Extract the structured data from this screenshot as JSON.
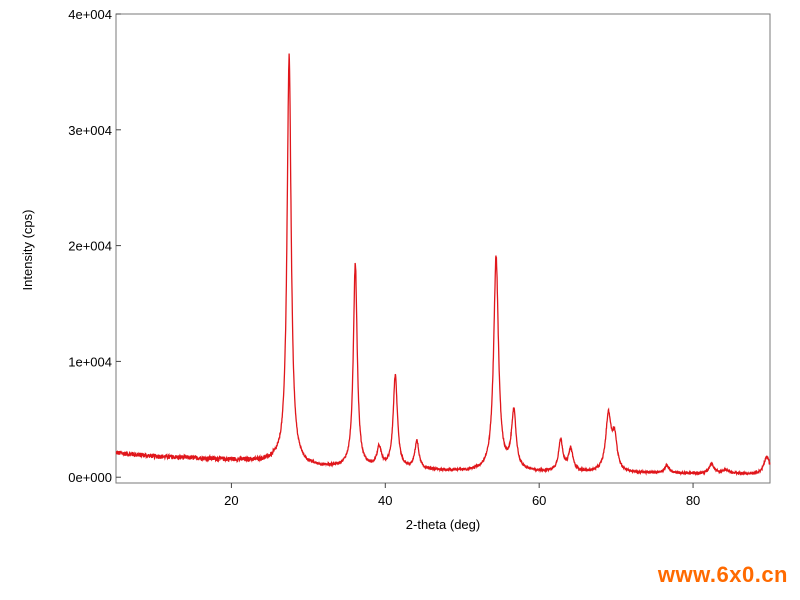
{
  "chart_data": {
    "type": "line",
    "title": "",
    "xlabel": "2-theta (deg)",
    "ylabel": "Intensity (cps)",
    "xlim": [
      5,
      90
    ],
    "ylim": [
      -500,
      40000
    ],
    "x_ticks": [
      20,
      40,
      60,
      80
    ],
    "x_tick_labels": [
      "20",
      "40",
      "60",
      "80"
    ],
    "y_ticks": [
      0,
      10000,
      20000,
      30000,
      40000
    ],
    "y_tick_labels": [
      "0e+000",
      "1e+004",
      "2e+004",
      "3e+004",
      "4e+004"
    ],
    "grid": false,
    "legend": "none",
    "series": [
      {
        "color": "#e0161b",
        "baseline": [
          [
            5,
            2100
          ],
          [
            10,
            1800
          ],
          [
            20,
            1500
          ],
          [
            26,
            1300
          ],
          [
            30,
            900
          ],
          [
            40,
            650
          ],
          [
            50,
            500
          ],
          [
            60,
            420
          ],
          [
            70,
            360
          ],
          [
            80,
            300
          ],
          [
            90,
            260
          ]
        ],
        "peaks": [
          {
            "x": 27.5,
            "height": 35200,
            "width": 0.32
          },
          {
            "x": 36.1,
            "height": 17600,
            "width": 0.3
          },
          {
            "x": 39.2,
            "height": 1700,
            "width": 0.35
          },
          {
            "x": 41.3,
            "height": 8000,
            "width": 0.33
          },
          {
            "x": 44.1,
            "height": 2400,
            "width": 0.32
          },
          {
            "x": 54.4,
            "height": 18300,
            "width": 0.38
          },
          {
            "x": 56.7,
            "height": 5000,
            "width": 0.36
          },
          {
            "x": 62.8,
            "height": 2700,
            "width": 0.34
          },
          {
            "x": 64.1,
            "height": 1900,
            "width": 0.36
          },
          {
            "x": 69.0,
            "height": 4800,
            "width": 0.42
          },
          {
            "x": 69.8,
            "height": 2800,
            "width": 0.38
          },
          {
            "x": 76.6,
            "height": 650,
            "width": 0.4
          },
          {
            "x": 82.4,
            "height": 800,
            "width": 0.42
          },
          {
            "x": 84.3,
            "height": 350,
            "width": 0.4
          },
          {
            "x": 89.6,
            "height": 1500,
            "width": 0.45
          }
        ]
      }
    ]
  },
  "watermark": "www.6x0.cn"
}
